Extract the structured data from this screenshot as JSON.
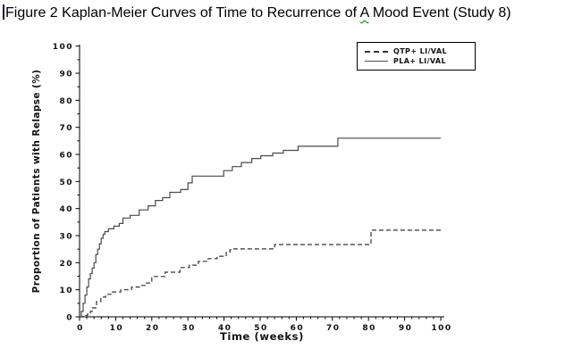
{
  "document": {
    "title_before": "Figure 2 Kaplan-Meier Curves of Time to Recurrence of ",
    "title_flagged_word": "A",
    "title_after": " Mood Event (Study 8)"
  },
  "chart_data": {
    "type": "line",
    "subtype": "kaplan-meier-step",
    "title": "Figure 2 Kaplan-Meier Curves of Time to Recurrence of A Mood Event (Study 8)",
    "xlabel": "Time (weeks)",
    "ylabel": "Proportion of Patients with Relapse (%)",
    "xlim": [
      0,
      100
    ],
    "ylim": [
      0,
      100
    ],
    "x_ticks_major": [
      0,
      10,
      20,
      30,
      40,
      50,
      60,
      70,
      80,
      90,
      100
    ],
    "x_tick_minor_step": 2,
    "y_ticks_major": [
      0,
      10,
      20,
      30,
      40,
      50,
      60,
      70,
      80,
      90,
      100
    ],
    "y_tick_minor_step": 5,
    "grid": false,
    "legend_position": "top-right-inside",
    "series": [
      {
        "name": "QTP+ LI/VAL",
        "style": "dashed",
        "color": "#333333",
        "points": [
          [
            0,
            0
          ],
          [
            1,
            0.5
          ],
          [
            2.2,
            1
          ],
          [
            3,
            2
          ],
          [
            3.5,
            3.3
          ],
          [
            4.7,
            5.6
          ],
          [
            5.9,
            7.3
          ],
          [
            7.2,
            8.3
          ],
          [
            8.9,
            9.2
          ],
          [
            11.4,
            10
          ],
          [
            14.4,
            11
          ],
          [
            16.8,
            11.6
          ],
          [
            18.1,
            12.5
          ],
          [
            20,
            14.9
          ],
          [
            23.7,
            16.5
          ],
          [
            27.8,
            18.2
          ],
          [
            30.4,
            19.1
          ],
          [
            32.9,
            20.5
          ],
          [
            35.6,
            21.5
          ],
          [
            38.1,
            22.4
          ],
          [
            40.6,
            23.8
          ],
          [
            41.6,
            24.8
          ],
          [
            42.5,
            25.1
          ],
          [
            54,
            26.7
          ],
          [
            80.7,
            32
          ],
          [
            100,
            32
          ]
        ]
      },
      {
        "name": "PLA+ LI/VAL",
        "style": "solid",
        "color": "#4a4a4a",
        "points": [
          [
            0,
            0
          ],
          [
            0.5,
            2
          ],
          [
            1,
            5
          ],
          [
            1.5,
            8
          ],
          [
            2,
            11
          ],
          [
            2.5,
            14
          ],
          [
            3,
            16
          ],
          [
            3.5,
            18
          ],
          [
            4,
            20
          ],
          [
            4.5,
            23
          ],
          [
            5,
            25
          ],
          [
            5.5,
            27
          ],
          [
            6,
            29
          ],
          [
            6.5,
            30.5
          ],
          [
            7,
            31.5
          ],
          [
            8,
            32.5
          ],
          [
            9.5,
            33.5
          ],
          [
            11,
            34.5
          ],
          [
            12,
            36.5
          ],
          [
            14,
            37.5
          ],
          [
            16.5,
            39.5
          ],
          [
            19,
            41
          ],
          [
            21,
            43
          ],
          [
            23,
            44
          ],
          [
            25,
            46
          ],
          [
            28,
            47
          ],
          [
            30,
            49.5
          ],
          [
            31.2,
            52
          ],
          [
            39.9,
            54
          ],
          [
            42.3,
            55.5
          ],
          [
            44.8,
            57
          ],
          [
            47.7,
            58.5
          ],
          [
            50.2,
            59.5
          ],
          [
            53.5,
            60.5
          ],
          [
            56.4,
            61.5
          ],
          [
            60.5,
            63
          ],
          [
            71.5,
            66
          ],
          [
            100,
            66
          ]
        ]
      }
    ]
  }
}
